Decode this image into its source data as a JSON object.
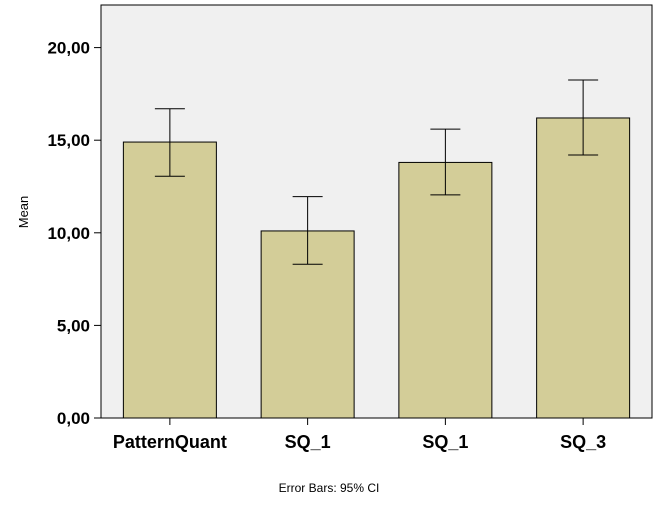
{
  "chart_data": {
    "type": "bar",
    "categories": [
      "PatternQuant",
      "SQ_1",
      "SQ_1",
      "SQ_3"
    ],
    "values": [
      14.9,
      10.1,
      13.8,
      16.2
    ],
    "error_bars": {
      "lower": [
        13.05,
        8.3,
        12.05,
        14.2
      ],
      "upper": [
        16.7,
        11.95,
        15.6,
        18.25
      ]
    },
    "ylabel": "Mean",
    "xlabel": "",
    "ylim": [
      0,
      22.3
    ],
    "y_ticks": [
      0,
      5,
      10,
      15,
      20
    ],
    "y_tick_labels": [
      "0,00",
      "5,00",
      "10,00",
      "15,00",
      "20,00"
    ],
    "footnote": "Error Bars: 95% CI",
    "grid": false,
    "colors": {
      "bar_fill": "#d3cd98",
      "bar_stroke": "#000000",
      "plot_background": "#f0f0f0",
      "error_bar": "#000000"
    }
  }
}
